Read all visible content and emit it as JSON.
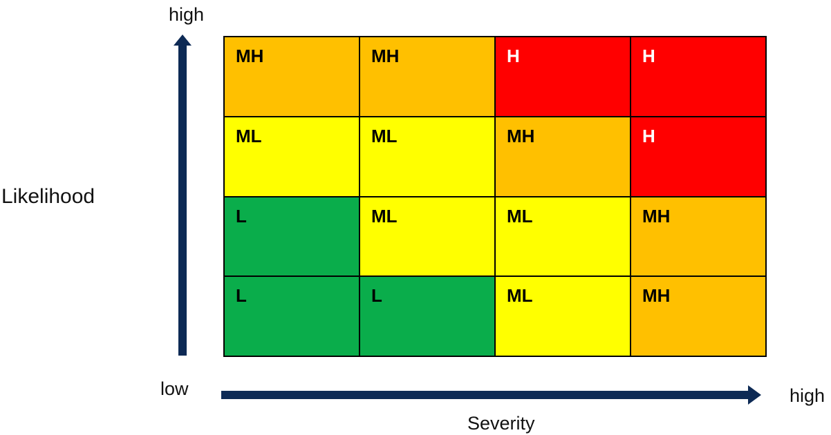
{
  "y_axis": {
    "title": "Likelihood",
    "high_label": "high"
  },
  "x_axis": {
    "title": "Severity",
    "low_label": "low",
    "high_label": "high"
  },
  "colors": {
    "L": "#0aad4b",
    "ML": "#ffff00",
    "MH": "#ffc000",
    "H": "#ff0000",
    "arrow": "#0d2a55"
  },
  "label_colors": {
    "L": "#000000",
    "ML": "#000000",
    "MH": "#000000",
    "H": "#ffffff"
  },
  "matrix": [
    [
      "MH",
      "MH",
      "H",
      "H"
    ],
    [
      "ML",
      "ML",
      "MH",
      "H"
    ],
    [
      "L",
      "ML",
      "ML",
      "MH"
    ],
    [
      "L",
      "L",
      "ML",
      "MH"
    ]
  ]
}
